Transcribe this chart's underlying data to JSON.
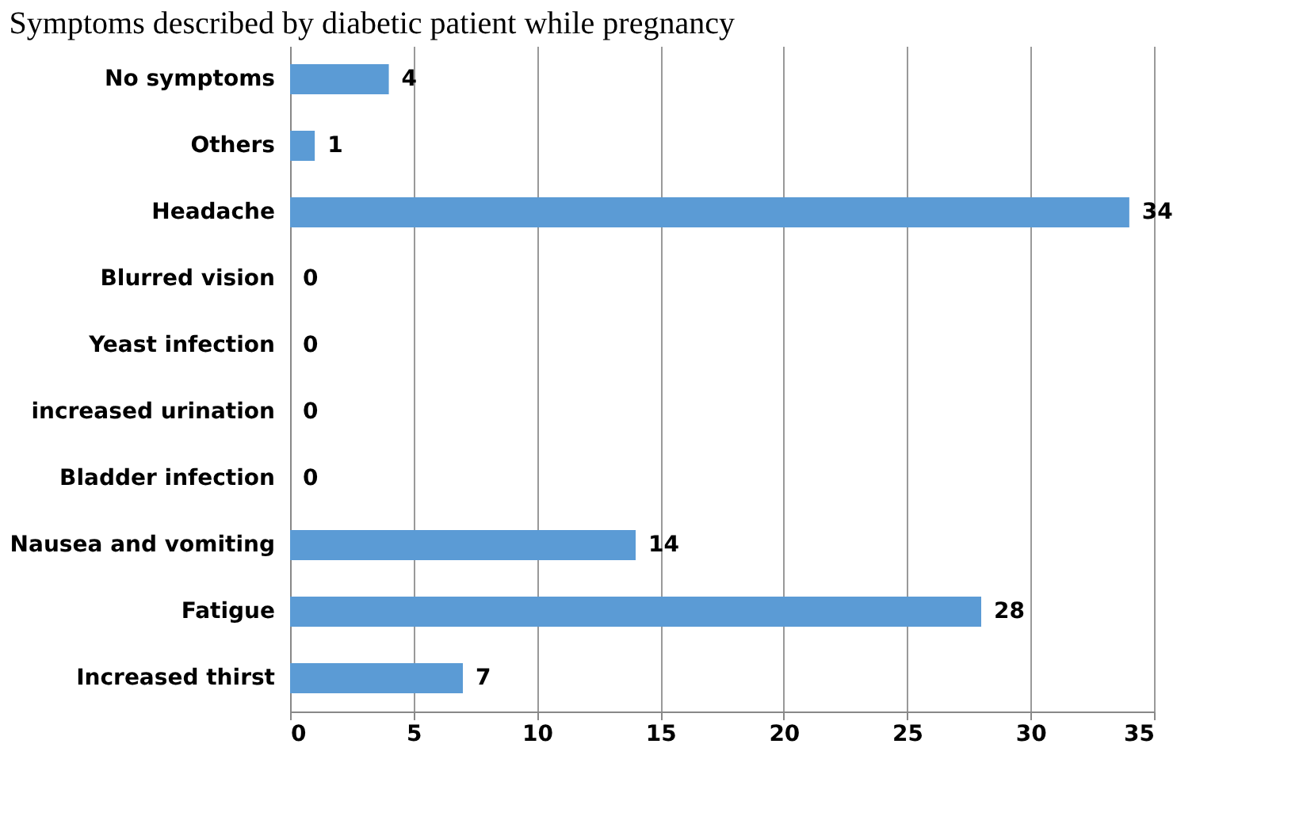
{
  "chart_data": {
    "type": "bar",
    "orientation": "horizontal",
    "title": "Symptoms described by diabetic patient while pregnancy",
    "categories": [
      "No symptoms",
      "Others",
      "Headache",
      "Blurred vision",
      "Yeast infection",
      "increased urination",
      "Bladder infection",
      "Nausea and vomiting",
      "Fatigue",
      "Increased thirst"
    ],
    "values": [
      4,
      1,
      34,
      0,
      0,
      0,
      0,
      14,
      28,
      7
    ],
    "color": "#5b9bd5",
    "xlim": [
      0,
      35
    ],
    "xticks": [
      0,
      5,
      10,
      15,
      20,
      25,
      30,
      35
    ],
    "grid": "x",
    "data_labels": true
  }
}
